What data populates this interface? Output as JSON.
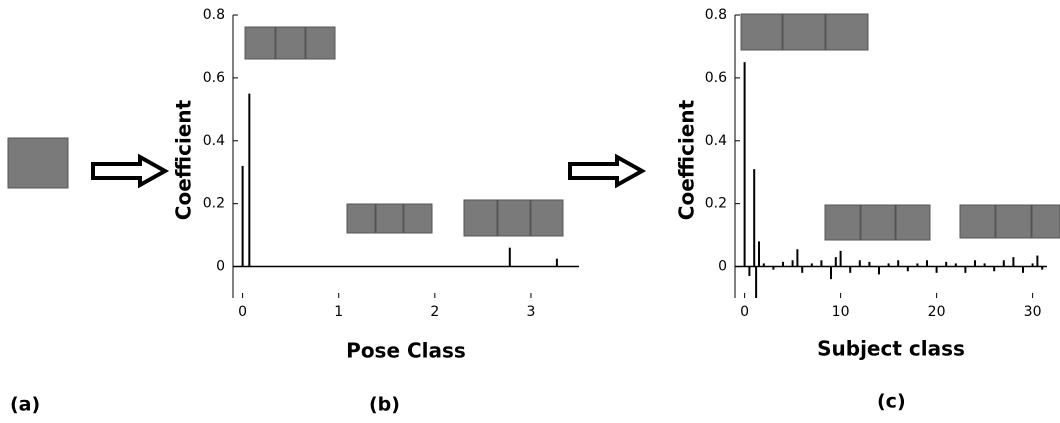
{
  "labels": [
    "(a)",
    "(b)",
    "(c)"
  ],
  "chart_data": [
    {
      "type": "stem",
      "xlabel": "Pose Class",
      "ylabel": "Coefficient",
      "color": "#000000",
      "x": [
        0,
        0.07,
        2.78,
        3.27
      ],
      "values": [
        0.32,
        0.55,
        0.06,
        0.025
      ],
      "xlim": [
        -0.1,
        3.5
      ],
      "ylim": [
        -0.1,
        0.8
      ],
      "xticks": [
        0,
        1,
        2,
        3
      ],
      "yticks": [
        0,
        0.2,
        0.4,
        0.6,
        0.8
      ]
    },
    {
      "type": "stem",
      "xlabel": "Subject class",
      "ylabel": "Coefficient",
      "color": "#000000",
      "x": [
        0,
        0.5,
        1,
        1.2,
        1.5,
        2,
        3,
        4,
        5,
        5.5,
        6,
        7,
        8,
        9,
        9.5,
        10,
        11,
        12,
        13,
        14,
        15,
        16,
        17,
        18,
        19,
        20,
        21,
        22,
        23,
        24,
        25,
        26,
        27,
        28,
        29,
        30,
        30.5,
        31
      ],
      "values": [
        0.65,
        -0.03,
        0.31,
        -0.1,
        0.08,
        0.01,
        -0.01,
        0.015,
        0.02,
        0.055,
        -0.02,
        0.01,
        0.02,
        -0.04,
        0.03,
        0.05,
        -0.02,
        0.02,
        0.015,
        -0.025,
        0.01,
        0.02,
        -0.015,
        0.01,
        0.02,
        -0.02,
        0.015,
        0.01,
        -0.02,
        0.02,
        0.01,
        -0.015,
        0.02,
        0.03,
        -0.02,
        0.01,
        0.035,
        -0.01
      ],
      "xlim": [
        -1,
        31.5
      ],
      "ylim": [
        -0.1,
        0.8
      ],
      "xticks": [
        0,
        10,
        20,
        30
      ],
      "yticks": [
        0,
        0.2,
        0.4,
        0.6,
        0.8
      ]
    }
  ]
}
